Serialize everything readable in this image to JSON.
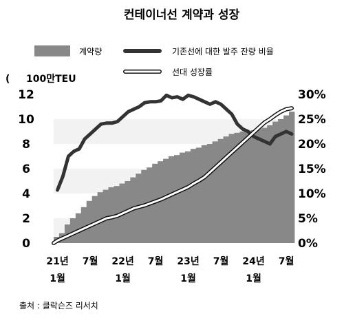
{
  "chart_data": {
    "type": "bar",
    "title": "컨테이너선 계약과 성장",
    "source": "출처 : 클락슨즈 리서치",
    "y_left_unit": "100만TEU",
    "ylim_left": [
      0,
      12
    ],
    "ylim_right": [
      0,
      30
    ],
    "y_left_ticks": [
      "0",
      "2",
      "4",
      "6",
      "8",
      "10",
      "12"
    ],
    "y_right_ticks": [
      "0%",
      "5%",
      "10%",
      "15%",
      "20%",
      "25%",
      "30%"
    ],
    "x_tick_labels": [
      {
        "month": 1,
        "line1": "21년",
        "line2": "1월"
      },
      {
        "month": 7,
        "line1": "7월",
        "line2": ""
      },
      {
        "month": 13,
        "line1": "22년",
        "line2": "1월"
      },
      {
        "month": 19,
        "line1": "7월",
        "line2": ""
      },
      {
        "month": 25,
        "line1": "23년",
        "line2": "1월"
      },
      {
        "month": 31,
        "line1": "7월",
        "line2": ""
      },
      {
        "month": 37,
        "line1": "24년",
        "line2": "1월"
      },
      {
        "month": 43,
        "line1": "7월",
        "line2": ""
      }
    ],
    "x_range_months": [
      0.3,
      44.5
    ],
    "series": [
      {
        "name": "계약량",
        "kind": "bar",
        "axis": "left",
        "color": "#888888",
        "values": [
          0.5,
          0.8,
          1.5,
          2.0,
          2.4,
          2.9,
          3.4,
          3.8,
          4.1,
          4.3,
          4.5,
          4.6,
          4.8,
          5.0,
          5.3,
          5.6,
          5.9,
          6.1,
          6.4,
          6.6,
          6.8,
          7.0,
          7.1,
          7.3,
          7.4,
          7.6,
          7.7,
          7.9,
          8.0,
          8.2,
          8.4,
          8.6,
          8.8,
          8.9,
          9.0,
          9.0,
          9.1,
          9.2,
          9.3,
          9.5,
          9.8,
          10.0,
          10.3,
          10.6
        ]
      },
      {
        "name": "기존선에 대한 발주 잔량 비율",
        "kind": "line",
        "axis": "right",
        "color": "#333333",
        "x": [
          1,
          2,
          3,
          4,
          5,
          6,
          7,
          8,
          9,
          10,
          11,
          12,
          13,
          14,
          15,
          16,
          17,
          18,
          19,
          20,
          21,
          22,
          23,
          24,
          25,
          26,
          27,
          28,
          29,
          30,
          31,
          32,
          33,
          34,
          35,
          36,
          37,
          38,
          39,
          40,
          41,
          42,
          43,
          44
        ],
        "values": [
          10.7,
          13.5,
          17.5,
          18.5,
          19.0,
          21.0,
          22.0,
          23.0,
          24.0,
          24.2,
          24.2,
          24.5,
          25.5,
          26.5,
          27.0,
          27.5,
          28.3,
          28.5,
          28.5,
          28.7,
          29.8,
          29.3,
          29.5,
          29.0,
          29.8,
          29.5,
          29.0,
          28.5,
          28.0,
          28.5,
          28.0,
          27.0,
          26.0,
          24.0,
          23.0,
          22.5,
          21.5,
          21.0,
          20.5,
          20.0,
          21.5,
          22.0,
          22.5,
          22.0
        ]
      },
      {
        "name": "선대 성장률",
        "kind": "line",
        "axis": "right",
        "color": "#ffffff",
        "x": [
          0.3,
          1,
          2,
          3,
          4,
          5,
          6,
          7,
          8,
          9,
          10,
          11,
          12,
          13,
          14,
          15,
          16,
          17,
          18,
          19,
          20,
          21,
          22,
          23,
          24,
          25,
          26,
          27,
          28,
          29,
          30,
          31,
          32,
          33,
          34,
          35,
          36,
          37,
          38,
          39,
          40,
          41,
          42,
          43,
          44
        ],
        "values": [
          0.0,
          0.5,
          1.0,
          1.5,
          2.0,
          2.5,
          3.0,
          3.5,
          4.0,
          4.5,
          5.0,
          5.2,
          5.5,
          6.0,
          6.5,
          7.0,
          7.3,
          7.6,
          8.0,
          8.4,
          8.8,
          9.3,
          9.8,
          10.3,
          10.8,
          11.3,
          12.0,
          12.6,
          13.3,
          14.3,
          15.3,
          16.3,
          17.3,
          18.3,
          19.3,
          20.3,
          21.3,
          22.3,
          23.3,
          24.3,
          25.0,
          25.8,
          26.5,
          27.0,
          27.2
        ]
      }
    ],
    "grid": "alternating horizontal bands"
  }
}
